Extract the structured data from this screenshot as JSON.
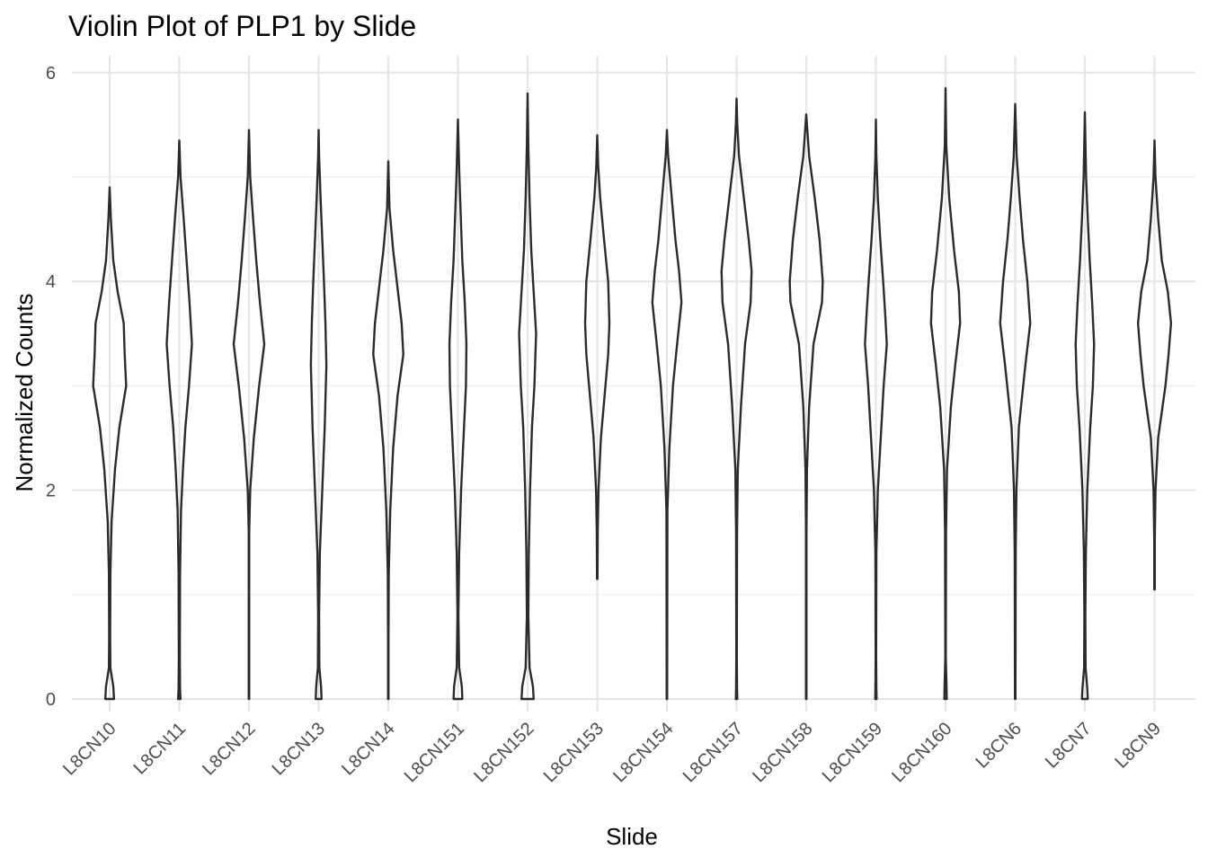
{
  "chart_data": {
    "type": "violin",
    "title": "Violin Plot of PLP1 by Slide",
    "xlabel": "Slide",
    "ylabel": "Normalized Counts",
    "ylim": [
      -0.3,
      6.25
    ],
    "yticks": [
      0,
      2,
      4,
      6
    ],
    "grid": true,
    "legend": "none",
    "colors": {
      "outline": "#2b2b2b",
      "grid": "#e6e6e6",
      "tick_label": "#4d4d4d"
    },
    "categories": [
      "L8CN10",
      "L8CN11",
      "L8CN12",
      "L8CN13",
      "L8CN14",
      "L8CN151",
      "L8CN152",
      "L8CN153",
      "L8CN154",
      "L8CN157",
      "L8CN158",
      "L8CN159",
      "L8CN160",
      "L8CN6",
      "L8CN7",
      "L8CN9"
    ],
    "violins": [
      {
        "category": "L8CN10",
        "min": 0,
        "max": 4.9,
        "profile": [
          [
            0,
            0.18
          ],
          [
            0.12,
            0.15
          ],
          [
            0.3,
            0.03
          ],
          [
            0.6,
            0.02
          ],
          [
            1.2,
            0.03
          ],
          [
            1.7,
            0.08
          ],
          [
            2.2,
            0.22
          ],
          [
            2.6,
            0.4
          ],
          [
            3.0,
            0.68
          ],
          [
            3.3,
            0.62
          ],
          [
            3.6,
            0.58
          ],
          [
            3.9,
            0.33
          ],
          [
            4.2,
            0.15
          ],
          [
            4.6,
            0.05
          ],
          [
            4.9,
            0
          ]
        ]
      },
      {
        "category": "L8CN11",
        "min": 0,
        "max": 5.35,
        "profile": [
          [
            0,
            0.05
          ],
          [
            0.1,
            0.03
          ],
          [
            0.4,
            0.02
          ],
          [
            1.2,
            0.03
          ],
          [
            1.8,
            0.07
          ],
          [
            2.2,
            0.15
          ],
          [
            2.6,
            0.25
          ],
          [
            3.0,
            0.4
          ],
          [
            3.4,
            0.52
          ],
          [
            3.8,
            0.42
          ],
          [
            4.2,
            0.3
          ],
          [
            4.6,
            0.18
          ],
          [
            5.0,
            0.05
          ],
          [
            5.35,
            0
          ]
        ]
      },
      {
        "category": "L8CN12",
        "min": 0,
        "max": 5.45,
        "profile": [
          [
            0,
            0.01
          ],
          [
            1.6,
            0.01
          ],
          [
            2.0,
            0.05
          ],
          [
            2.5,
            0.2
          ],
          [
            3.0,
            0.42
          ],
          [
            3.4,
            0.63
          ],
          [
            3.8,
            0.45
          ],
          [
            4.2,
            0.3
          ],
          [
            4.6,
            0.17
          ],
          [
            5.0,
            0.05
          ],
          [
            5.45,
            0
          ]
        ]
      },
      {
        "category": "L8CN13",
        "min": 0,
        "max": 5.45,
        "profile": [
          [
            0,
            0.12
          ],
          [
            0.12,
            0.1
          ],
          [
            0.3,
            0.03
          ],
          [
            0.8,
            0.02
          ],
          [
            1.4,
            0.05
          ],
          [
            2.0,
            0.15
          ],
          [
            2.6,
            0.25
          ],
          [
            3.2,
            0.32
          ],
          [
            3.6,
            0.28
          ],
          [
            4.0,
            0.22
          ],
          [
            4.4,
            0.15
          ],
          [
            4.8,
            0.08
          ],
          [
            5.2,
            0.02
          ],
          [
            5.45,
            0
          ]
        ]
      },
      {
        "category": "L8CN14",
        "min": 0,
        "max": 5.15,
        "profile": [
          [
            0,
            0.01
          ],
          [
            0.6,
            0.01
          ],
          [
            1.2,
            0.02
          ],
          [
            1.8,
            0.08
          ],
          [
            2.4,
            0.2
          ],
          [
            2.9,
            0.38
          ],
          [
            3.3,
            0.62
          ],
          [
            3.6,
            0.55
          ],
          [
            3.9,
            0.4
          ],
          [
            4.3,
            0.2
          ],
          [
            4.7,
            0.05
          ],
          [
            5.15,
            0
          ]
        ]
      },
      {
        "category": "L8CN151",
        "min": 0,
        "max": 5.55,
        "profile": [
          [
            0,
            0.18
          ],
          [
            0.12,
            0.16
          ],
          [
            0.3,
            0.05
          ],
          [
            0.8,
            0.02
          ],
          [
            1.4,
            0.05
          ],
          [
            2.0,
            0.13
          ],
          [
            2.6,
            0.25
          ],
          [
            3.0,
            0.33
          ],
          [
            3.4,
            0.35
          ],
          [
            3.8,
            0.28
          ],
          [
            4.2,
            0.18
          ],
          [
            4.6,
            0.12
          ],
          [
            5.0,
            0.06
          ],
          [
            5.55,
            0
          ]
        ]
      },
      {
        "category": "L8CN152",
        "min": 0,
        "max": 5.8,
        "profile": [
          [
            0,
            0.25
          ],
          [
            0.12,
            0.22
          ],
          [
            0.3,
            0.08
          ],
          [
            0.8,
            0.03
          ],
          [
            1.4,
            0.05
          ],
          [
            2.0,
            0.1
          ],
          [
            2.6,
            0.18
          ],
          [
            3.0,
            0.28
          ],
          [
            3.5,
            0.35
          ],
          [
            3.9,
            0.25
          ],
          [
            4.3,
            0.15
          ],
          [
            4.8,
            0.08
          ],
          [
            5.3,
            0.03
          ],
          [
            5.8,
            0
          ]
        ]
      },
      {
        "category": "L8CN153",
        "min": 1.15,
        "max": 5.4,
        "profile": [
          [
            1.15,
            0.01
          ],
          [
            1.6,
            0.02
          ],
          [
            2.0,
            0.05
          ],
          [
            2.5,
            0.15
          ],
          [
            2.9,
            0.3
          ],
          [
            3.3,
            0.45
          ],
          [
            3.6,
            0.5
          ],
          [
            4.0,
            0.45
          ],
          [
            4.4,
            0.28
          ],
          [
            4.8,
            0.12
          ],
          [
            5.1,
            0.04
          ],
          [
            5.4,
            0
          ]
        ]
      },
      {
        "category": "L8CN154",
        "min": 0,
        "max": 5.45,
        "profile": [
          [
            0,
            0.01
          ],
          [
            1.8,
            0.02
          ],
          [
            2.4,
            0.1
          ],
          [
            3.0,
            0.25
          ],
          [
            3.4,
            0.42
          ],
          [
            3.8,
            0.6
          ],
          [
            4.1,
            0.5
          ],
          [
            4.4,
            0.35
          ],
          [
            4.8,
            0.2
          ],
          [
            5.2,
            0.05
          ],
          [
            5.45,
            0
          ]
        ]
      },
      {
        "category": "L8CN157",
        "min": 0,
        "max": 5.75,
        "profile": [
          [
            0,
            0.03
          ],
          [
            0.1,
            0.02
          ],
          [
            0.4,
            0.01
          ],
          [
            1.6,
            0.02
          ],
          [
            2.2,
            0.05
          ],
          [
            2.8,
            0.18
          ],
          [
            3.4,
            0.35
          ],
          [
            3.8,
            0.58
          ],
          [
            4.1,
            0.62
          ],
          [
            4.4,
            0.5
          ],
          [
            4.8,
            0.3
          ],
          [
            5.2,
            0.1
          ],
          [
            5.5,
            0.03
          ],
          [
            5.75,
            0
          ]
        ]
      },
      {
        "category": "L8CN158",
        "min": 0,
        "max": 5.6,
        "profile": [
          [
            0,
            0.01
          ],
          [
            1.6,
            0.01
          ],
          [
            2.2,
            0.03
          ],
          [
            2.8,
            0.12
          ],
          [
            3.4,
            0.3
          ],
          [
            3.8,
            0.65
          ],
          [
            4.0,
            0.68
          ],
          [
            4.4,
            0.55
          ],
          [
            4.8,
            0.35
          ],
          [
            5.2,
            0.12
          ],
          [
            5.6,
            0
          ]
        ]
      },
      {
        "category": "L8CN159",
        "min": 0,
        "max": 5.55,
        "profile": [
          [
            0,
            0.03
          ],
          [
            0.1,
            0.02
          ],
          [
            0.4,
            0.01
          ],
          [
            1.4,
            0.02
          ],
          [
            2.0,
            0.08
          ],
          [
            2.5,
            0.2
          ],
          [
            3.0,
            0.32
          ],
          [
            3.4,
            0.45
          ],
          [
            3.7,
            0.38
          ],
          [
            4.0,
            0.3
          ],
          [
            4.4,
            0.18
          ],
          [
            4.8,
            0.08
          ],
          [
            5.2,
            0.02
          ],
          [
            5.55,
            0
          ]
        ]
      },
      {
        "category": "L8CN160",
        "min": 0,
        "max": 5.85,
        "profile": [
          [
            0,
            0.05
          ],
          [
            0.12,
            0.04
          ],
          [
            0.4,
            0.01
          ],
          [
            1.6,
            0.02
          ],
          [
            2.2,
            0.06
          ],
          [
            2.8,
            0.22
          ],
          [
            3.2,
            0.4
          ],
          [
            3.6,
            0.6
          ],
          [
            3.9,
            0.55
          ],
          [
            4.3,
            0.35
          ],
          [
            4.8,
            0.15
          ],
          [
            5.3,
            0.03
          ],
          [
            5.85,
            0
          ]
        ]
      },
      {
        "category": "L8CN6",
        "min": 0,
        "max": 5.7,
        "profile": [
          [
            0,
            0.01
          ],
          [
            1.4,
            0.02
          ],
          [
            2.0,
            0.05
          ],
          [
            2.6,
            0.15
          ],
          [
            3.2,
            0.42
          ],
          [
            3.6,
            0.62
          ],
          [
            4.0,
            0.5
          ],
          [
            4.4,
            0.32
          ],
          [
            4.8,
            0.18
          ],
          [
            5.2,
            0.06
          ],
          [
            5.7,
            0
          ]
        ]
      },
      {
        "category": "L8CN7",
        "min": 0,
        "max": 5.62,
        "profile": [
          [
            0,
            0.12
          ],
          [
            0.1,
            0.1
          ],
          [
            0.3,
            0.03
          ],
          [
            0.8,
            0.02
          ],
          [
            1.4,
            0.04
          ],
          [
            2.0,
            0.1
          ],
          [
            2.6,
            0.22
          ],
          [
            3.0,
            0.33
          ],
          [
            3.4,
            0.38
          ],
          [
            3.8,
            0.3
          ],
          [
            4.2,
            0.2
          ],
          [
            4.6,
            0.12
          ],
          [
            5.0,
            0.05
          ],
          [
            5.62,
            0
          ]
        ]
      },
      {
        "category": "L8CN9",
        "min": 1.05,
        "max": 5.35,
        "profile": [
          [
            1.05,
            0.01
          ],
          [
            1.5,
            0.01
          ],
          [
            2.0,
            0.04
          ],
          [
            2.5,
            0.15
          ],
          [
            3.0,
            0.45
          ],
          [
            3.3,
            0.58
          ],
          [
            3.6,
            0.68
          ],
          [
            3.9,
            0.55
          ],
          [
            4.2,
            0.3
          ],
          [
            4.6,
            0.15
          ],
          [
            5.0,
            0.04
          ],
          [
            5.35,
            0
          ]
        ]
      }
    ]
  }
}
